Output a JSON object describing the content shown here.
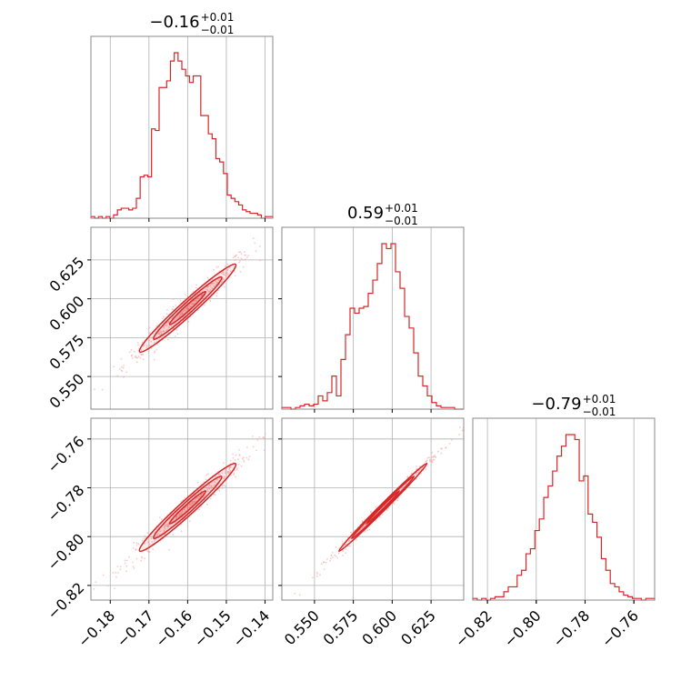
{
  "chart_data": {
    "type": "corner",
    "color": "#d62728",
    "point_color": "#f4a6a6",
    "grid": true,
    "parameters": [
      {
        "range": [
          -0.185,
          -0.138
        ],
        "ticks": [
          -0.18,
          -0.17,
          -0.16,
          -0.15,
          -0.14
        ],
        "tick_labels": [
          "−0.18",
          "−0.17",
          "−0.16",
          "−0.15",
          "−0.14"
        ],
        "title": {
          "value": "−0.16",
          "plus": "+0.01",
          "minus": "−0.01"
        },
        "median": -0.16,
        "sigma": 0.0052,
        "hist": [
          0.01,
          0.0,
          0.01,
          0.0,
          0.01,
          0.0,
          0.02,
          0.05,
          0.06,
          0.06,
          0.05,
          0.06,
          0.12,
          0.25,
          0.26,
          0.25,
          0.54,
          0.53,
          0.79,
          0.79,
          0.83,
          0.95,
          1.0,
          0.95,
          0.9,
          0.86,
          0.82,
          0.86,
          0.86,
          0.62,
          0.62,
          0.51,
          0.48,
          0.36,
          0.34,
          0.27,
          0.14,
          0.12,
          0.1,
          0.08,
          0.05,
          0.04,
          0.03,
          0.03,
          0.02,
          0.0,
          0.01,
          0.01
        ]
      },
      {
        "range": [
          0.529,
          0.646
        ],
        "ticks": [
          0.55,
          0.575,
          0.6,
          0.625
        ],
        "tick_labels": [
          "0.550",
          "0.575",
          "0.600",
          "0.625"
        ],
        "title": {
          "value": "0.59",
          "plus": "+0.01",
          "minus": "−0.01"
        },
        "median": 0.594,
        "sigma": 0.0118,
        "hist": [
          0.01,
          0.01,
          0.0,
          0.01,
          0.02,
          0.03,
          0.02,
          0.03,
          0.08,
          0.05,
          0.1,
          0.2,
          0.08,
          0.3,
          0.45,
          0.61,
          0.58,
          0.61,
          0.62,
          0.7,
          0.78,
          0.88,
          1.0,
          0.97,
          1.0,
          0.83,
          0.73,
          0.56,
          0.49,
          0.34,
          0.2,
          0.14,
          0.08,
          0.04,
          0.02,
          0.01,
          0.01,
          0.01,
          0.0,
          0.0
        ]
      },
      {
        "range": [
          -0.826,
          -0.7515
        ],
        "ticks": [
          -0.82,
          -0.8,
          -0.78,
          -0.76
        ],
        "tick_labels": [
          "−0.82",
          "−0.80",
          "−0.78",
          "−0.76"
        ],
        "title": {
          "value": "−0.79",
          "plus": "+0.01",
          "minus": "−0.01"
        },
        "median": -0.788,
        "sigma": 0.0075,
        "hist": [
          0.01,
          0.0,
          0.01,
          0.0,
          0.01,
          0.02,
          0.02,
          0.05,
          0.08,
          0.08,
          0.15,
          0.18,
          0.28,
          0.31,
          0.42,
          0.49,
          0.62,
          0.69,
          0.78,
          0.87,
          0.93,
          1.0,
          1.0,
          0.97,
          0.72,
          0.75,
          0.52,
          0.47,
          0.38,
          0.25,
          0.18,
          0.1,
          0.08,
          0.05,
          0.03,
          0.02,
          0.01,
          0.01,
          0.0,
          0.01,
          0.01
        ]
      }
    ],
    "correlations": [
      [
        1.0,
        0.975,
        0.975
      ],
      [
        0.975,
        1.0,
        0.995
      ],
      [
        0.975,
        0.995,
        1.0
      ]
    ]
  }
}
